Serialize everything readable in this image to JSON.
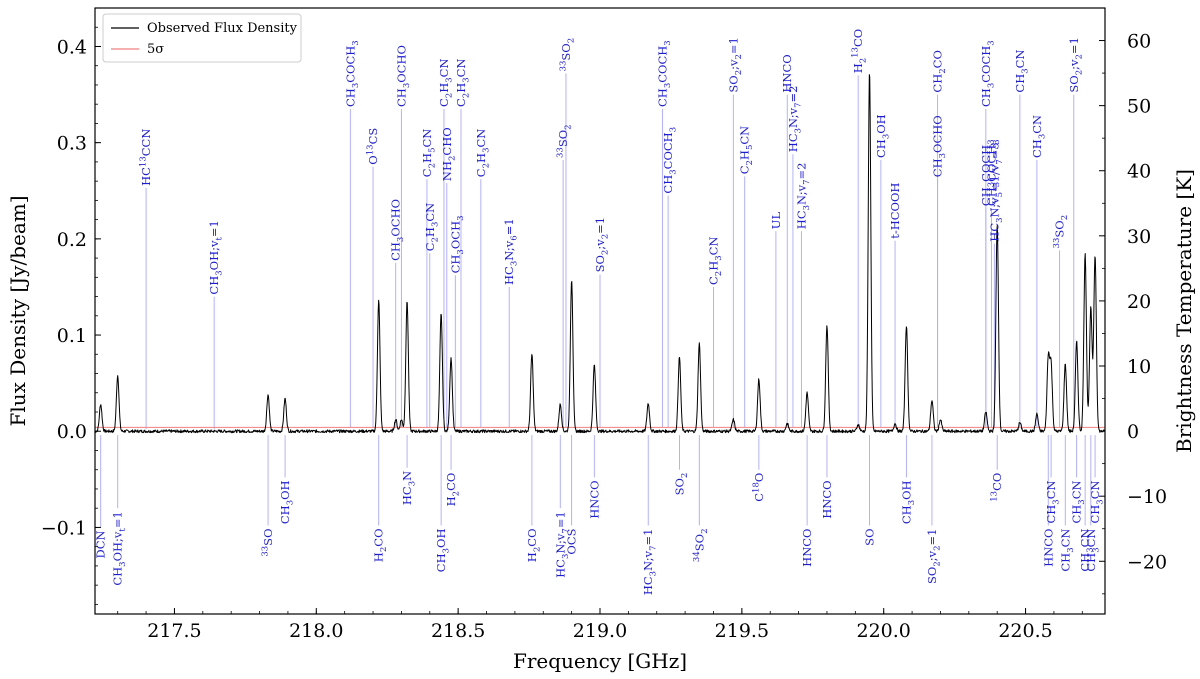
{
  "chart_data": {
    "type": "line",
    "xlabel": "Frequency [GHz]",
    "ylabel": "Flux Density [Jy/beam]",
    "y2label": "Brightness Temperature [K]",
    "xlim": [
      217.22,
      220.78
    ],
    "ylim": [
      -0.19,
      0.44
    ],
    "y2lim": [
      -28.1,
      65.0
    ],
    "xticks": [
      217.5,
      218.0,
      218.5,
      219.0,
      219.5,
      220.0,
      220.5
    ],
    "xtick_labels": [
      "217.5",
      "218.0",
      "218.5",
      "219.0",
      "219.5",
      "220.0",
      "220.5"
    ],
    "yticks": [
      -0.1,
      0.0,
      0.1,
      0.2,
      0.3,
      0.4
    ],
    "ytick_labels": [
      "−0.1",
      "0.0",
      "0.1",
      "0.2",
      "0.3",
      "0.4"
    ],
    "y2ticks": [
      -20,
      -10,
      0,
      10,
      20,
      30,
      40,
      50,
      60
    ],
    "y2tick_labels": [
      "−20",
      "−10",
      "0",
      "10",
      "20",
      "30",
      "40",
      "50",
      "60"
    ],
    "legend_position": "top-left",
    "series": [
      {
        "name": "Observed Flux Density",
        "color": "#000000"
      },
      {
        "name": "5σ",
        "color": "#f08080",
        "value": 0.004
      }
    ],
    "peaks": [
      {
        "x": 217.24,
        "y": 0.028
      },
      {
        "x": 217.3,
        "y": 0.058
      },
      {
        "x": 217.83,
        "y": 0.038
      },
      {
        "x": 217.89,
        "y": 0.034
      },
      {
        "x": 218.22,
        "y": 0.136
      },
      {
        "x": 218.28,
        "y": 0.012
      },
      {
        "x": 218.3,
        "y": 0.012
      },
      {
        "x": 218.32,
        "y": 0.135
      },
      {
        "x": 218.44,
        "y": 0.122
      },
      {
        "x": 218.475,
        "y": 0.076
      },
      {
        "x": 218.76,
        "y": 0.08
      },
      {
        "x": 218.86,
        "y": 0.028
      },
      {
        "x": 218.9,
        "y": 0.158
      },
      {
        "x": 218.98,
        "y": 0.069
      },
      {
        "x": 219.17,
        "y": 0.029
      },
      {
        "x": 219.28,
        "y": 0.077
      },
      {
        "x": 219.35,
        "y": 0.091
      },
      {
        "x": 219.47,
        "y": 0.012
      },
      {
        "x": 219.56,
        "y": 0.054
      },
      {
        "x": 219.66,
        "y": 0.008
      },
      {
        "x": 219.73,
        "y": 0.04
      },
      {
        "x": 219.8,
        "y": 0.11
      },
      {
        "x": 219.91,
        "y": 0.007
      },
      {
        "x": 219.95,
        "y": 0.374
      },
      {
        "x": 220.04,
        "y": 0.008
      },
      {
        "x": 220.08,
        "y": 0.11
      },
      {
        "x": 220.17,
        "y": 0.032
      },
      {
        "x": 220.2,
        "y": 0.012
      },
      {
        "x": 220.36,
        "y": 0.02
      },
      {
        "x": 220.4,
        "y": 0.215
      },
      {
        "x": 220.48,
        "y": 0.009
      },
      {
        "x": 220.54,
        "y": 0.018
      },
      {
        "x": 220.58,
        "y": 0.075
      },
      {
        "x": 220.59,
        "y": 0.068
      },
      {
        "x": 220.64,
        "y": 0.07
      },
      {
        "x": 220.68,
        "y": 0.093
      },
      {
        "x": 220.71,
        "y": 0.184
      },
      {
        "x": 220.73,
        "y": 0.128
      },
      {
        "x": 220.745,
        "y": 0.183
      }
    ],
    "upper_annotations": [
      {
        "x": 217.4,
        "y_top": 0.253,
        "y_bottom": 0.002,
        "label": "HC<sup>13</sup>CCN"
      },
      {
        "x": 217.64,
        "y_top": 0.14,
        "y_bottom": 0.002,
        "label": "CH<sub>3</sub>OH;v<sub>t</sub>=1"
      },
      {
        "x": 218.12,
        "y_top": 0.335,
        "y_bottom": 0.004,
        "label": "CH<sub>3</sub>COCH<sub>3</sub>"
      },
      {
        "x": 218.2,
        "y_top": 0.275,
        "y_bottom": 0.004,
        "label": "O<sup>13</sup>CS"
      },
      {
        "x": 218.28,
        "y_top": 0.175,
        "y_bottom": 0.004,
        "label": "CH<sub>3</sub>OCHO"
      },
      {
        "x": 218.3,
        "y_top": 0.335,
        "y_bottom": 0.004,
        "label": "CH<sub>3</sub>OCHO"
      },
      {
        "x": 218.39,
        "y_top": 0.262,
        "y_bottom": 0.004,
        "label": "C<sub>2</sub>H<sub>5</sub>CN"
      },
      {
        "x": 218.4,
        "y_top": 0.185,
        "y_bottom": 0.004,
        "label": "C<sub>2</sub>H<sub>3</sub>CN"
      },
      {
        "x": 218.45,
        "y_top": 0.335,
        "y_bottom": 0.004,
        "label": "C<sub>2</sub>H<sub>3</sub>CN"
      },
      {
        "x": 218.46,
        "y_top": 0.258,
        "y_bottom": 0.004,
        "label": "NH<sub>2</sub>CHO"
      },
      {
        "x": 218.49,
        "y_top": 0.162,
        "y_bottom": 0.004,
        "label": "CH<sub>3</sub>OCH<sub>3</sub>"
      },
      {
        "x": 218.51,
        "y_top": 0.335,
        "y_bottom": 0.004,
        "label": "C<sub>2</sub>H<sub>3</sub>CN"
      },
      {
        "x": 218.58,
        "y_top": 0.262,
        "y_bottom": 0.004,
        "label": "C<sub>2</sub>H<sub>3</sub>CN"
      },
      {
        "x": 218.68,
        "y_top": 0.15,
        "y_bottom": 0.004,
        "label": "HC<sub>3</sub>N;v<sub>6</sub>=1"
      },
      {
        "x": 218.87,
        "y_top": 0.282,
        "y_bottom": 0.004,
        "label": "<sup>33</sup>SO<sub>2</sub>"
      },
      {
        "x": 218.88,
        "y_top": 0.372,
        "y_bottom": 0.004,
        "label": "<sup>33</sup>SO<sub>2</sub>"
      },
      {
        "x": 219.0,
        "y_top": 0.163,
        "y_bottom": 0.004,
        "label": "SO<sub>2</sub>;v<sub>2</sub>=1"
      },
      {
        "x": 219.22,
        "y_top": 0.335,
        "y_bottom": 0.004,
        "label": "CH<sub>3</sub>COCH<sub>3</sub>"
      },
      {
        "x": 219.24,
        "y_top": 0.245,
        "y_bottom": 0.004,
        "label": "CH<sub>3</sub>COCH<sub>3</sub>"
      },
      {
        "x": 219.4,
        "y_top": 0.15,
        "y_bottom": 0.004,
        "label": "C<sub>2</sub>H<sub>3</sub>CN"
      },
      {
        "x": 219.47,
        "y_top": 0.35,
        "y_bottom": 0.004,
        "label": "SO<sub>2</sub>;v<sub>2</sub>=1"
      },
      {
        "x": 219.51,
        "y_top": 0.265,
        "y_bottom": 0.004,
        "label": "C<sub>2</sub>H<sub>5</sub>CN"
      },
      {
        "x": 219.62,
        "y_top": 0.208,
        "y_bottom": 0.004,
        "label": "UL"
      },
      {
        "x": 219.66,
        "y_top": 0.35,
        "y_bottom": 0.004,
        "label": "HNCO"
      },
      {
        "x": 219.68,
        "y_top": 0.288,
        "y_bottom": 0.004,
        "label": "HC<sub>3</sub>N;v<sub>7</sub>=2"
      },
      {
        "x": 219.71,
        "y_top": 0.208,
        "y_bottom": 0.004,
        "label": "HC<sub>3</sub>N;v<sub>7</sub>=2"
      },
      {
        "x": 219.91,
        "y_top": 0.37,
        "y_bottom": 0.004,
        "label": "H<sub>2</sub><sup>13</sup>CO"
      },
      {
        "x": 219.99,
        "y_top": 0.282,
        "y_bottom": 0.004,
        "label": "CH<sub>3</sub>OH"
      },
      {
        "x": 220.04,
        "y_top": 0.198,
        "y_bottom": 0.004,
        "label": "t-HCOOH"
      },
      {
        "x": 220.19,
        "y_top": 0.35,
        "y_bottom": 0.004,
        "label": "CH<sub>2</sub>CO"
      },
      {
        "x": 220.19,
        "y_top": 0.262,
        "y_bottom": 0.004,
        "label": "CH<sub>3</sub>OCHO"
      },
      {
        "x": 220.36,
        "y_top": 0.335,
        "y_bottom": 0.004,
        "label": "CH<sub>3</sub>COCH<sub>3</sub>"
      },
      {
        "x": 220.36,
        "y_top": 0.232,
        "y_bottom": 0.004,
        "label": "CH<sub>3</sub>COCH<sub>3</sub>"
      },
      {
        "x": 220.38,
        "y_top": 0.232,
        "y_bottom": 0.004,
        "label": "CH<sub>3</sub>COCH<sub>3</sub>"
      },
      {
        "x": 220.39,
        "y_top": 0.195,
        "y_bottom": 0.004,
        "label": "HC<sub>3</sub>N;v<sub>5</sub>=1/v<sub>7</sub>=3"
      },
      {
        "x": 220.48,
        "y_top": 0.35,
        "y_bottom": 0.004,
        "label": "CH<sub>3</sub>CN"
      },
      {
        "x": 220.54,
        "y_top": 0.282,
        "y_bottom": 0.004,
        "label": "CH<sub>3</sub>CN"
      },
      {
        "x": 220.62,
        "y_top": 0.188,
        "y_bottom": 0.004,
        "label": "<sup>33</sup>SO<sub>2</sub>"
      },
      {
        "x": 220.67,
        "y_top": 0.35,
        "y_bottom": 0.004,
        "label": "SO<sub>2</sub>;v<sub>2</sub>=1"
      }
    ],
    "lower_annotations": [
      {
        "x": 217.24,
        "y_bottom": -0.1,
        "label": "DCN"
      },
      {
        "x": 217.3,
        "y_bottom": -0.08,
        "label": "CH<sub>3</sub>OH;v<sub>t</sub>=1"
      },
      {
        "x": 217.83,
        "y_bottom": -0.098,
        "label": "<sup>33</sup>SO"
      },
      {
        "x": 217.89,
        "y_bottom": -0.048,
        "label": "CH<sub>3</sub>OH"
      },
      {
        "x": 218.22,
        "y_bottom": -0.098,
        "label": "H<sub>2</sub>CO"
      },
      {
        "x": 218.32,
        "y_bottom": -0.038,
        "label": "HC<sub>3</sub>N"
      },
      {
        "x": 218.44,
        "y_bottom": -0.098,
        "label": "CH<sub>3</sub>OH"
      },
      {
        "x": 218.475,
        "y_bottom": -0.04,
        "label": "H<sub>2</sub>CO"
      },
      {
        "x": 218.76,
        "y_bottom": -0.098,
        "label": "H<sub>2</sub>CO"
      },
      {
        "x": 218.86,
        "y_bottom": -0.08,
        "label": "HC<sub>3</sub>N;v<sub>7</sub>=1"
      },
      {
        "x": 218.9,
        "y_bottom": -0.098,
        "label": "OCS"
      },
      {
        "x": 218.98,
        "y_bottom": -0.048,
        "label": "HNCO"
      },
      {
        "x": 219.17,
        "y_bottom": -0.098,
        "label": "HC<sub>3</sub>N;v<sub>7</sub>=1"
      },
      {
        "x": 219.28,
        "y_bottom": -0.04,
        "label": "SO<sub>2</sub>"
      },
      {
        "x": 219.35,
        "y_bottom": -0.098,
        "label": "<sup>34</sup>SO<sub>2</sub>"
      },
      {
        "x": 219.56,
        "y_bottom": -0.04,
        "label": "C<sup>18</sup>O"
      },
      {
        "x": 219.73,
        "y_bottom": -0.098,
        "label": "HNCO"
      },
      {
        "x": 219.8,
        "y_bottom": -0.048,
        "label": "HNCO"
      },
      {
        "x": 219.95,
        "y_bottom": -0.098,
        "label": "SO"
      },
      {
        "x": 220.08,
        "y_bottom": -0.048,
        "label": "CH<sub>3</sub>OH"
      },
      {
        "x": 220.17,
        "y_bottom": -0.098,
        "label": "SO<sub>2</sub>;v<sub>2</sub>=1"
      },
      {
        "x": 220.4,
        "y_bottom": -0.04,
        "label": "<sup>13</sup>CO"
      },
      {
        "x": 220.58,
        "y_bottom": -0.098,
        "label": "HNCO"
      },
      {
        "x": 220.59,
        "y_bottom": -0.048,
        "label": "CH<sub>3</sub>CN"
      },
      {
        "x": 220.64,
        "y_bottom": -0.098,
        "label": "CH<sub>3</sub>CN"
      },
      {
        "x": 220.68,
        "y_bottom": -0.048,
        "label": "CH<sub>3</sub>CN"
      },
      {
        "x": 220.71,
        "y_bottom": -0.098,
        "label": "CH<sub>3</sub>CN"
      },
      {
        "x": 220.73,
        "y_bottom": -0.098,
        "label": "CH<sub>3</sub>CN"
      },
      {
        "x": 220.745,
        "y_bottom": -0.048,
        "label": "CH<sub>3</sub>CN"
      }
    ]
  }
}
